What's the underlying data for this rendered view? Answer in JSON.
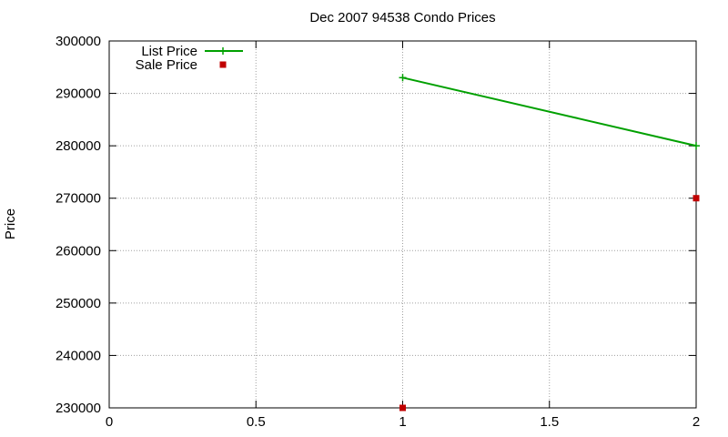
{
  "chart_data": {
    "type": "line",
    "title": "Dec 2007 94538 Condo Prices",
    "xlabel": "",
    "ylabel": "Price",
    "xlim": [
      0,
      2
    ],
    "ylim": [
      230000,
      300000
    ],
    "x_ticks": [
      "0",
      "0.5",
      "1",
      "1.5",
      "2"
    ],
    "y_ticks": [
      "230000",
      "240000",
      "250000",
      "260000",
      "270000",
      "280000",
      "290000",
      "300000"
    ],
    "grid": true,
    "legend_position": "top-left",
    "series": [
      {
        "name": "List Price",
        "style": "linespoints",
        "marker": "plus",
        "color": "#00a000",
        "x": [
          1,
          2
        ],
        "values": [
          293000,
          280000
        ]
      },
      {
        "name": "Sale Price",
        "style": "points",
        "marker": "square",
        "color": "#c00000",
        "x": [
          1,
          2
        ],
        "values": [
          230000,
          270000
        ]
      }
    ]
  }
}
